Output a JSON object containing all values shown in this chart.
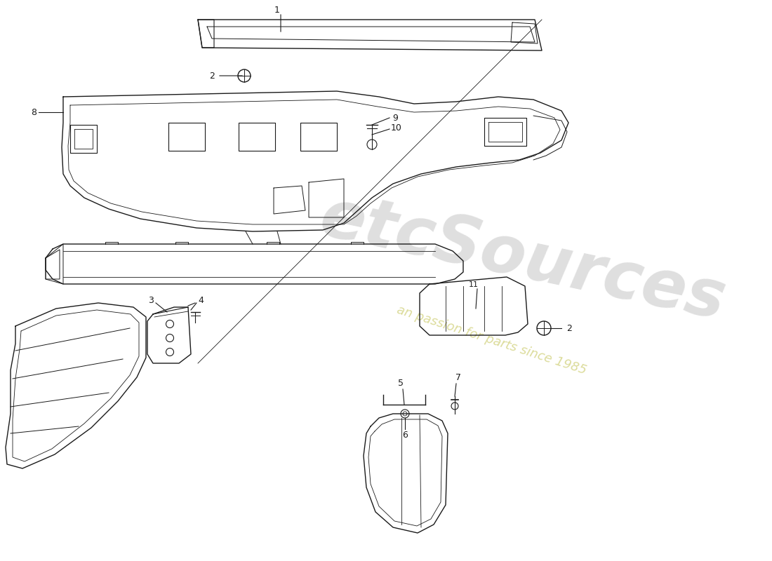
{
  "background_color": "#ffffff",
  "line_color": "#1a1a1a",
  "lw": 1.0,
  "watermark_logo": "etcSources",
  "watermark_text": "an passion for parts since 1985"
}
